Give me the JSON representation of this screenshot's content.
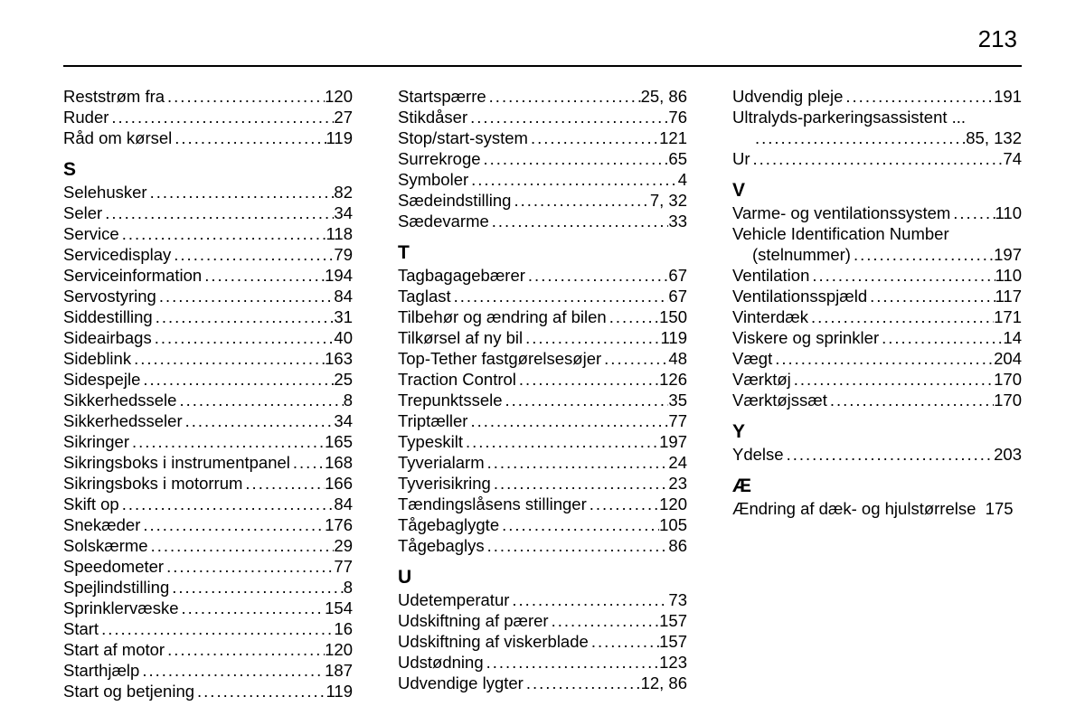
{
  "page_number": "213",
  "columns": [
    [
      {
        "type": "entry",
        "label": "Reststrøm fra",
        "page": "120"
      },
      {
        "type": "entry",
        "label": "Ruder",
        "page": "27"
      },
      {
        "type": "entry",
        "label": "Råd om kørsel",
        "page": "119"
      },
      {
        "type": "section",
        "label": "S"
      },
      {
        "type": "entry",
        "label": "Selehusker",
        "page": "82"
      },
      {
        "type": "entry",
        "label": "Seler",
        "page": "34"
      },
      {
        "type": "entry",
        "label": "Service",
        "page": "118"
      },
      {
        "type": "entry",
        "label": "Servicedisplay",
        "page": "79"
      },
      {
        "type": "entry",
        "label": "Serviceinformation",
        "page": "194"
      },
      {
        "type": "entry",
        "label": "Servostyring",
        "page": "84"
      },
      {
        "type": "entry",
        "label": "Siddestilling",
        "page": "31"
      },
      {
        "type": "entry",
        "label": "Sideairbags",
        "page": "40"
      },
      {
        "type": "entry",
        "label": "Sideblink",
        "page": "163"
      },
      {
        "type": "entry",
        "label": "Sidespejle",
        "page": "25"
      },
      {
        "type": "entry",
        "label": "Sikkerhedssele",
        "page": "8"
      },
      {
        "type": "entry",
        "label": "Sikkerhedsseler",
        "page": "34"
      },
      {
        "type": "entry",
        "label": "Sikringer",
        "page": "165"
      },
      {
        "type": "entry",
        "label": "Sikringsboks i instrumentpanel",
        "page": "168"
      },
      {
        "type": "entry",
        "label": "Sikringsboks i motorrum",
        "page": "166"
      },
      {
        "type": "entry",
        "label": "Skift op",
        "page": "84"
      },
      {
        "type": "entry",
        "label": "Snekæder",
        "page": "176"
      },
      {
        "type": "entry",
        "label": "Solskærme",
        "page": "29"
      },
      {
        "type": "entry",
        "label": "Speedometer",
        "page": "77"
      },
      {
        "type": "entry",
        "label": "Spejlindstilling",
        "page": "8"
      },
      {
        "type": "entry",
        "label": "Sprinklervæske",
        "page": "154"
      },
      {
        "type": "entry",
        "label": "Start",
        "page": "16"
      },
      {
        "type": "entry",
        "label": "Start af motor",
        "page": "120"
      },
      {
        "type": "entry",
        "label": "Starthjælp",
        "page": "187"
      },
      {
        "type": "entry",
        "label": "Start og betjening",
        "page": "119"
      }
    ],
    [
      {
        "type": "entry",
        "label": "Startspærre",
        "page": "25, 86"
      },
      {
        "type": "entry",
        "label": "Stikdåser",
        "page": "76"
      },
      {
        "type": "entry",
        "label": "Stop/start-system",
        "page": "121"
      },
      {
        "type": "entry",
        "label": "Surrekroge",
        "page": "65"
      },
      {
        "type": "entry",
        "label": "Symboler",
        "page": "4"
      },
      {
        "type": "entry",
        "label": "Sædeindstilling",
        "page": "7, 32"
      },
      {
        "type": "entry",
        "label": "Sædevarme",
        "page": "33"
      },
      {
        "type": "section",
        "label": "T"
      },
      {
        "type": "entry",
        "label": "Tagbagagebærer",
        "page": "67"
      },
      {
        "type": "entry",
        "label": "Taglast",
        "page": "67"
      },
      {
        "type": "entry",
        "label": "Tilbehør og ændring af bilen",
        "page": "150"
      },
      {
        "type": "entry",
        "label": "Tilkørsel af ny bil",
        "page": "119"
      },
      {
        "type": "entry",
        "label": "Top-Tether fastgørelsesøjer",
        "page": "48"
      },
      {
        "type": "entry",
        "label": "Traction Control",
        "page": "126"
      },
      {
        "type": "entry",
        "label": "Trepunktssele",
        "page": "35"
      },
      {
        "type": "entry",
        "label": "Triptæller",
        "page": "77"
      },
      {
        "type": "entry",
        "label": "Typeskilt",
        "page": "197"
      },
      {
        "type": "entry",
        "label": "Tyverialarm",
        "page": "24"
      },
      {
        "type": "entry",
        "label": "Tyverisikring",
        "page": "23"
      },
      {
        "type": "entry",
        "label": "Tændingslåsens stillinger",
        "page": "120"
      },
      {
        "type": "entry",
        "label": "Tågebaglygte",
        "page": "105"
      },
      {
        "type": "entry",
        "label": "Tågebaglys",
        "page": "86"
      },
      {
        "type": "section",
        "label": "U"
      },
      {
        "type": "entry",
        "label": "Udetemperatur",
        "page": "73"
      },
      {
        "type": "entry",
        "label": "Udskiftning af pærer",
        "page": "157"
      },
      {
        "type": "entry",
        "label": "Udskiftning af viskerblade",
        "page": "157"
      },
      {
        "type": "entry",
        "label": "Udstødning",
        "page": "123"
      },
      {
        "type": "entry",
        "label": "Udvendige lygter",
        "page": "12, 86"
      }
    ],
    [
      {
        "type": "entry",
        "label": "Udvendig pleje",
        "page": "191"
      },
      {
        "type": "entry-multi",
        "label": "Ultralyds-parkeringsassistent",
        "page": "85, 132"
      },
      {
        "type": "entry",
        "label": "Ur",
        "page": "74"
      },
      {
        "type": "section",
        "label": "V"
      },
      {
        "type": "entry",
        "label": "Varme- og ventilationssystem",
        "page": "110"
      },
      {
        "type": "entry-multi2",
        "label": "Vehicle Identification Number",
        "sub": "(stelnummer)",
        "page": "197"
      },
      {
        "type": "entry",
        "label": "Ventilation",
        "page": "110"
      },
      {
        "type": "entry",
        "label": "Ventilationsspjæld",
        "page": "117"
      },
      {
        "type": "entry",
        "label": "Vinterdæk",
        "page": "171"
      },
      {
        "type": "entry",
        "label": "Viskere og sprinkler",
        "page": "14"
      },
      {
        "type": "entry",
        "label": "Vægt",
        "page": "204"
      },
      {
        "type": "entry",
        "label": "Værktøj",
        "page": "170"
      },
      {
        "type": "entry",
        "label": "Værktøjssæt",
        "page": "170"
      },
      {
        "type": "section",
        "label": "Y"
      },
      {
        "type": "entry",
        "label": "Ydelse",
        "page": "203"
      },
      {
        "type": "section",
        "label": "Æ"
      },
      {
        "type": "entry-tight",
        "label": "Ændring af dæk- og hjulstørrelse",
        "page": "175"
      }
    ]
  ]
}
